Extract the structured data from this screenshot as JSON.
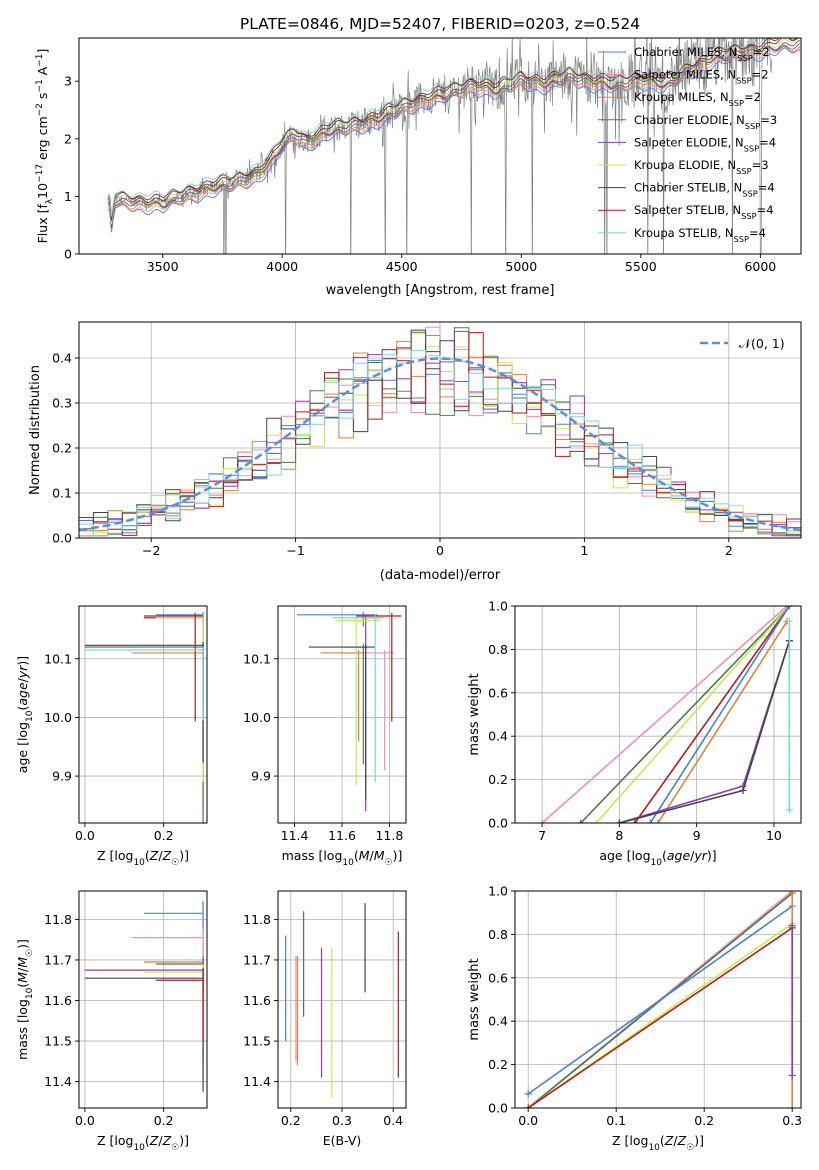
{
  "figure": {
    "title": "PLATE=0846, MJD=52407, FIBERID=0203, z=0.524"
  },
  "colors": {
    "data": "#808080",
    "chabrier_miles": "#4a7fd6",
    "salpeter_miles": "#f08fb8",
    "kroupa_miles": "#d9843f",
    "chabrier_elodie": "#4a7a4a",
    "salpeter_elodie": "#8e3bb5",
    "kroupa_elodie": "#c9e85a",
    "chabrier_stelib": "#444444",
    "salpeter_stelib": "#b01c1c",
    "kroupa_stelib": "#7fd3e0",
    "gauss": "#5b8fd9"
  },
  "chart_data": [
    {
      "id": "spectrum",
      "type": "line",
      "xlabel": "wavelength [Angstrom, rest frame]",
      "ylabel": "Flux [f_λ 10⁻¹⁷ erg cm⁻² s⁻¹ A⁻¹]",
      "xlim": [
        3150,
        6170
      ],
      "ylim": [
        0,
        3.75
      ],
      "xticks": [
        3500,
        4000,
        4500,
        5000,
        5500,
        6000
      ],
      "yticks": [
        0,
        1,
        2,
        3
      ],
      "grid": false,
      "legend": "top-right",
      "model_wavelengths": [
        3270,
        3300,
        3400,
        3500,
        3600,
        3700,
        3800,
        3900,
        3950,
        4000,
        4050,
        4100,
        4200,
        4300,
        4400,
        4500,
        4600,
        4700,
        4800,
        4900,
        5000,
        5100,
        5200,
        5300,
        5400,
        5500,
        5600,
        5700,
        5800,
        5900,
        6000,
        6100
      ],
      "model_flux": [
        0.0,
        0.95,
        0.9,
        0.88,
        1.05,
        1.15,
        1.25,
        1.4,
        1.6,
        1.9,
        2.1,
        1.95,
        2.15,
        2.25,
        2.35,
        2.55,
        2.7,
        2.8,
        2.95,
        2.85,
        3.05,
        2.95,
        3.1,
        3.0,
        2.95,
        3.05,
        2.95,
        3.2,
        3.4,
        3.5,
        3.55,
        3.65
      ],
      "data_start": 3270,
      "data_end": 6050,
      "series": [
        {
          "name": "Chabrier MILES, N_SSP=2"
        },
        {
          "name": "Salpeter MILES, N_SSP=2"
        },
        {
          "name": "Kroupa MILES, N_SSP=2"
        },
        {
          "name": "Chabrier ELODIE, N_SSP=3"
        },
        {
          "name": "Salpeter ELODIE, N_SSP=4"
        },
        {
          "name": "Kroupa ELODIE, N_SSP=3"
        },
        {
          "name": "Chabrier STELIB, N_SSP=4"
        },
        {
          "name": "Salpeter STELIB, N_SSP=4"
        },
        {
          "name": "Kroupa STELIB, N_SSP=4"
        }
      ]
    },
    {
      "id": "residuals",
      "type": "histogram",
      "xlabel": "(data-model)/error",
      "ylabel": "Normed distribution",
      "xlim": [
        -2.5,
        2.5
      ],
      "ylim": [
        0,
        0.48
      ],
      "xticks": [
        -2,
        -1,
        0,
        1,
        2
      ],
      "yticks": [
        0.0,
        0.1,
        0.2,
        0.3,
        0.4
      ],
      "grid": true,
      "legend": "top-right",
      "reference_curve": {
        "name": "N(0, 1)",
        "mu": 0,
        "sigma": 1
      },
      "bin_width": 0.1,
      "bin_start": -2.5
    },
    {
      "id": "age_vs_Z",
      "type": "errorbar",
      "xlabel": "Z [log10(Z/Z☉)]",
      "ylabel": "age  [log10(age/yr)]",
      "xlim": [
        -0.015,
        0.31
      ],
      "ylim": [
        9.82,
        10.19
      ],
      "xticks": [
        0.0,
        0.2
      ],
      "yticks": [
        9.9,
        10.0,
        10.1
      ],
      "grid": true,
      "points": [
        {
          "x": 0.3,
          "y": 10.175,
          "xerr": [
            0.12,
            0.0
          ],
          "yerr": [
            0.02,
            0.005
          ]
        },
        {
          "x": 0.3,
          "y": 10.17,
          "xerr": [
            0.15,
            0.0
          ],
          "yerr": [
            0.33,
            0.005
          ]
        },
        {
          "x": 0.3,
          "y": 10.11,
          "xerr": [
            0.18,
            0.0
          ],
          "yerr": [
            0.02,
            0.005
          ]
        },
        {
          "x": 0.3,
          "y": 10.12,
          "xerr": [
            0.3,
            0.0
          ],
          "yerr": [
            0.3,
            0.005
          ]
        },
        {
          "x": 0.3,
          "y": 10.17,
          "xerr": [
            0.15,
            0.0
          ],
          "yerr": [
            0.15,
            0.005
          ]
        },
        {
          "x": 0.3,
          "y": 10.17,
          "xerr": [
            0.12,
            0.0
          ],
          "yerr": [
            0.28,
            0.005
          ]
        },
        {
          "x": 0.3,
          "y": 10.123,
          "xerr": [
            0.3,
            0.0
          ],
          "yerr": [
            0.2,
            0.005
          ]
        },
        {
          "x": 0.28,
          "y": 10.173,
          "xerr": [
            0.13,
            0.02
          ],
          "yerr": [
            0.18,
            0.005
          ]
        },
        {
          "x": 0.3,
          "y": 10.115,
          "xerr": [
            0.3,
            0.0
          ],
          "yerr": [
            0.12,
            0.005
          ]
        }
      ]
    },
    {
      "id": "age_vs_mass",
      "type": "errorbar",
      "xlabel": "mass [log10(M/M☉)]",
      "ylabel": "",
      "xlim": [
        11.33,
        11.87
      ],
      "ylim": [
        9.82,
        10.19
      ],
      "xticks": [
        11.4,
        11.6,
        11.8
      ],
      "yticks": [
        9.9,
        10.0,
        10.1
      ],
      "grid": true,
      "points": [
        {
          "x": 11.69,
          "y": 10.175,
          "xerr": [
            0.28,
            0.06
          ],
          "yerr": [
            0.02,
            0.005
          ]
        },
        {
          "x": 11.78,
          "y": 10.11,
          "xerr": [
            0.22,
            0.04
          ],
          "yerr": [
            0.2,
            0.005
          ]
        },
        {
          "x": 11.67,
          "y": 10.11,
          "xerr": [
            0.16,
            0.02
          ],
          "yerr": [
            0.15,
            0.005
          ]
        },
        {
          "x": 11.69,
          "y": 10.12,
          "xerr": [
            0.08,
            0.02
          ],
          "yerr": [
            0.2,
            0.005
          ]
        },
        {
          "x": 11.7,
          "y": 10.17,
          "xerr": [
            0.02,
            0.06
          ],
          "yerr": [
            0.33,
            0.005
          ]
        },
        {
          "x": 11.66,
          "y": 10.165,
          "xerr": [
            0.08,
            0.1
          ],
          "yerr": [
            0.28,
            0.005
          ]
        },
        {
          "x": 11.7,
          "y": 10.12,
          "xerr": [
            0.24,
            0.04
          ],
          "yerr": [
            0.26,
            0.005
          ]
        },
        {
          "x": 11.81,
          "y": 10.173,
          "xerr": [
            0.15,
            0.04
          ],
          "yerr": [
            0.18,
            0.005
          ]
        },
        {
          "x": 11.74,
          "y": 10.17,
          "xerr": [
            0.18,
            0.04
          ],
          "yerr": [
            0.28,
            0.005
          ]
        }
      ]
    },
    {
      "id": "mass_weight_vs_age",
      "type": "line",
      "xlabel": "age  [log10(age/yr)]",
      "ylabel": "mass weight",
      "xlim": [
        6.65,
        10.35
      ],
      "ylim": [
        0,
        1
      ],
      "xticks": [
        7,
        8,
        9,
        10
      ],
      "yticks": [
        0.0,
        0.2,
        0.4,
        0.6,
        0.8,
        1.0
      ],
      "grid": true,
      "lines": [
        {
          "x": [
            7.0,
            10.17
          ],
          "y": [
            0.0,
            1.0
          ]
        },
        {
          "x": [
            7.5,
            10.2
          ],
          "y": [
            0.0,
            1.0
          ]
        },
        {
          "x": [
            7.7,
            10.2
          ],
          "y": [
            0.0,
            1.0
          ]
        },
        {
          "x": [
            8.2,
            10.2
          ],
          "y": [
            0.0,
            1.0
          ]
        },
        {
          "x": [
            8.4,
            10.2
          ],
          "y": [
            0.0,
            1.0
          ]
        },
        {
          "x": [
            8.5,
            10.17
          ],
          "y": [
            0.0,
            0.93
          ]
        },
        {
          "x": [
            8.0,
            9.6,
            10.2
          ],
          "y": [
            0.0,
            0.17,
            0.84
          ]
        },
        {
          "x": [
            8.0,
            9.6,
            10.2
          ],
          "y": [
            0.0,
            0.15,
            0.84
          ]
        },
        {
          "x": [
            10.2,
            10.2
          ],
          "y": [
            0.06,
            0.93
          ]
        }
      ]
    },
    {
      "id": "mass_vs_Z",
      "type": "errorbar",
      "xlabel": "Z [log10(Z/Z☉)]",
      "ylabel": "mass [log10(M/M☉)]",
      "xlim": [
        -0.015,
        0.31
      ],
      "ylim": [
        11.335,
        11.87
      ],
      "xticks": [
        0.0,
        0.2
      ],
      "yticks": [
        11.4,
        11.5,
        11.6,
        11.7,
        11.8
      ],
      "grid": true,
      "points": [
        {
          "x": 0.3,
          "y": 11.815,
          "xerr": [
            0.15,
            0.0
          ],
          "yerr": [
            0.19,
            0.03
          ]
        },
        {
          "x": 0.3,
          "y": 11.755,
          "xerr": [
            0.18,
            0.0
          ],
          "yerr": [
            0.12,
            0.02
          ]
        },
        {
          "x": 0.3,
          "y": 11.695,
          "xerr": [
            0.15,
            0.0
          ],
          "yerr": [
            0.3,
            0.01
          ]
        },
        {
          "x": 0.3,
          "y": 11.69,
          "xerr": [
            0.12,
            0.0
          ],
          "yerr": [
            0.24,
            0.02
          ]
        },
        {
          "x": 0.3,
          "y": 11.675,
          "xerr": [
            0.3,
            0.0
          ],
          "yerr": [
            0.05,
            0.02
          ]
        },
        {
          "x": 0.3,
          "y": 11.67,
          "xerr": [
            0.15,
            0.0
          ],
          "yerr": [
            0.1,
            0.02
          ]
        },
        {
          "x": 0.3,
          "y": 11.655,
          "xerr": [
            0.3,
            0.0
          ],
          "yerr": [
            0.28,
            0.02
          ]
        },
        {
          "x": 0.3,
          "y": 11.65,
          "xerr": [
            0.12,
            0.0
          ],
          "yerr": [
            0.15,
            0.03
          ]
        }
      ]
    },
    {
      "id": "mass_vs_ebv",
      "type": "errorbar",
      "xlabel": "E(B-V)",
      "ylabel": "",
      "xlim": [
        0.175,
        0.425
      ],
      "ylim": [
        11.335,
        11.87
      ],
      "xticks": [
        0.2,
        0.3,
        0.4
      ],
      "yticks": [
        11.4,
        11.5,
        11.6,
        11.7,
        11.8
      ],
      "grid": true,
      "points": [
        {
          "x": 0.19,
          "y": 11.62,
          "yerr": [
            0.12,
            0.14
          ]
        },
        {
          "x": 0.21,
          "y": 11.58,
          "yerr": [
            0.13,
            0.13
          ]
        },
        {
          "x": 0.213,
          "y": 11.58,
          "yerr": [
            0.14,
            0.13
          ]
        },
        {
          "x": 0.225,
          "y": 11.7,
          "yerr": [
            0.14,
            0.12
          ]
        },
        {
          "x": 0.26,
          "y": 11.57,
          "yerr": [
            0.16,
            0.16
          ]
        },
        {
          "x": 0.28,
          "y": 11.55,
          "yerr": [
            0.19,
            0.18
          ]
        },
        {
          "x": 0.345,
          "y": 11.73,
          "yerr": [
            0.11,
            0.11
          ]
        },
        {
          "x": 0.41,
          "y": 11.6,
          "yerr": [
            0.19,
            0.17
          ]
        }
      ]
    },
    {
      "id": "mass_weight_vs_Z",
      "type": "line",
      "xlabel": "Z [log10(Z/Z☉)]",
      "ylabel": "mass weight",
      "xlim": [
        -0.015,
        0.31
      ],
      "ylim": [
        0,
        1
      ],
      "xticks": [
        0.0,
        0.1,
        0.2,
        0.3
      ],
      "yticks": [
        0.0,
        0.2,
        0.4,
        0.6,
        0.8,
        1.0
      ],
      "grid": true,
      "lines": [
        {
          "x": [
            0.0,
            0.3
          ],
          "y": [
            0.0,
            1.0
          ]
        },
        {
          "x": [
            0.0,
            0.3
          ],
          "y": [
            0.0,
            0.99
          ]
        },
        {
          "x": [
            0.0,
            0.3
          ],
          "y": [
            0.0,
            0.85
          ]
        },
        {
          "x": [
            0.0,
            0.3
          ],
          "y": [
            0.0,
            0.83
          ]
        },
        {
          "x": [
            0.0,
            0.3
          ],
          "y": [
            0.065,
            0.93
          ]
        },
        {
          "x": [
            0.3,
            0.3
          ],
          "y": [
            0.0,
            0.99
          ]
        },
        {
          "x": [
            0.3,
            0.3
          ],
          "y": [
            0.15,
            0.84
          ]
        }
      ]
    }
  ]
}
